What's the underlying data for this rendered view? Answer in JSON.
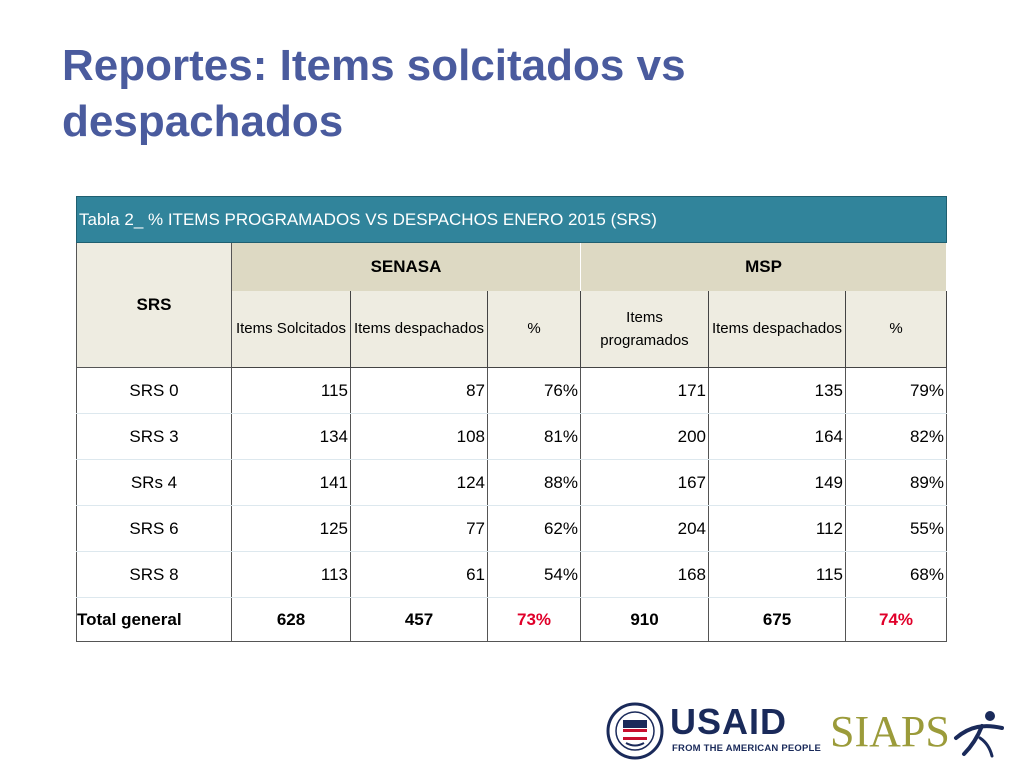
{
  "slide": {
    "title": "Reportes: Items solcitados vs despachados"
  },
  "table": {
    "caption": "Tabla 2_ % ITEMS PROGRAMADOS  VS DESPACHOS ENERO 2015 (SRS)",
    "row_header": "SRS",
    "groups": [
      "SENASA",
      "MSP"
    ],
    "sub_headers": [
      "Items Solcitados",
      "Items despachados",
      "%",
      "Items programados",
      "Items despachados",
      "%"
    ],
    "rows": [
      {
        "label": "SRS 0",
        "values": [
          "115",
          "87",
          "76%",
          "171",
          "135",
          "79%"
        ]
      },
      {
        "label": "SRS 3",
        "values": [
          "134",
          "108",
          "81%",
          "200",
          "164",
          "82%"
        ]
      },
      {
        "label": "SRs 4",
        "values": [
          "141",
          "124",
          "88%",
          "167",
          "149",
          "89%"
        ]
      },
      {
        "label": "SRS 6",
        "values": [
          "125",
          "77",
          "62%",
          "204",
          "112",
          "55%"
        ]
      },
      {
        "label": "SRS 8",
        "values": [
          "113",
          "61",
          "54%",
          "168",
          "115",
          "68%"
        ]
      }
    ],
    "total": {
      "label": "Total general",
      "values": [
        "628",
        "457",
        "73%",
        "910",
        "675",
        "74%"
      ]
    }
  },
  "logos": {
    "usaid_word": "USAID",
    "usaid_tagline": "FROM THE AMERICAN PEOPLE",
    "siaps_word": "SIAPS"
  },
  "colors": {
    "title": "#4a5b9e",
    "caption_bg": "#31849b",
    "group_header_bg": "#ddd9c3",
    "sub_header_bg": "#eeece1",
    "total_pct": "#e0002a",
    "usaid_red": "#c8102e",
    "usaid_blue": "#1a2a5a",
    "siaps_olive": "#9b9b3a"
  }
}
